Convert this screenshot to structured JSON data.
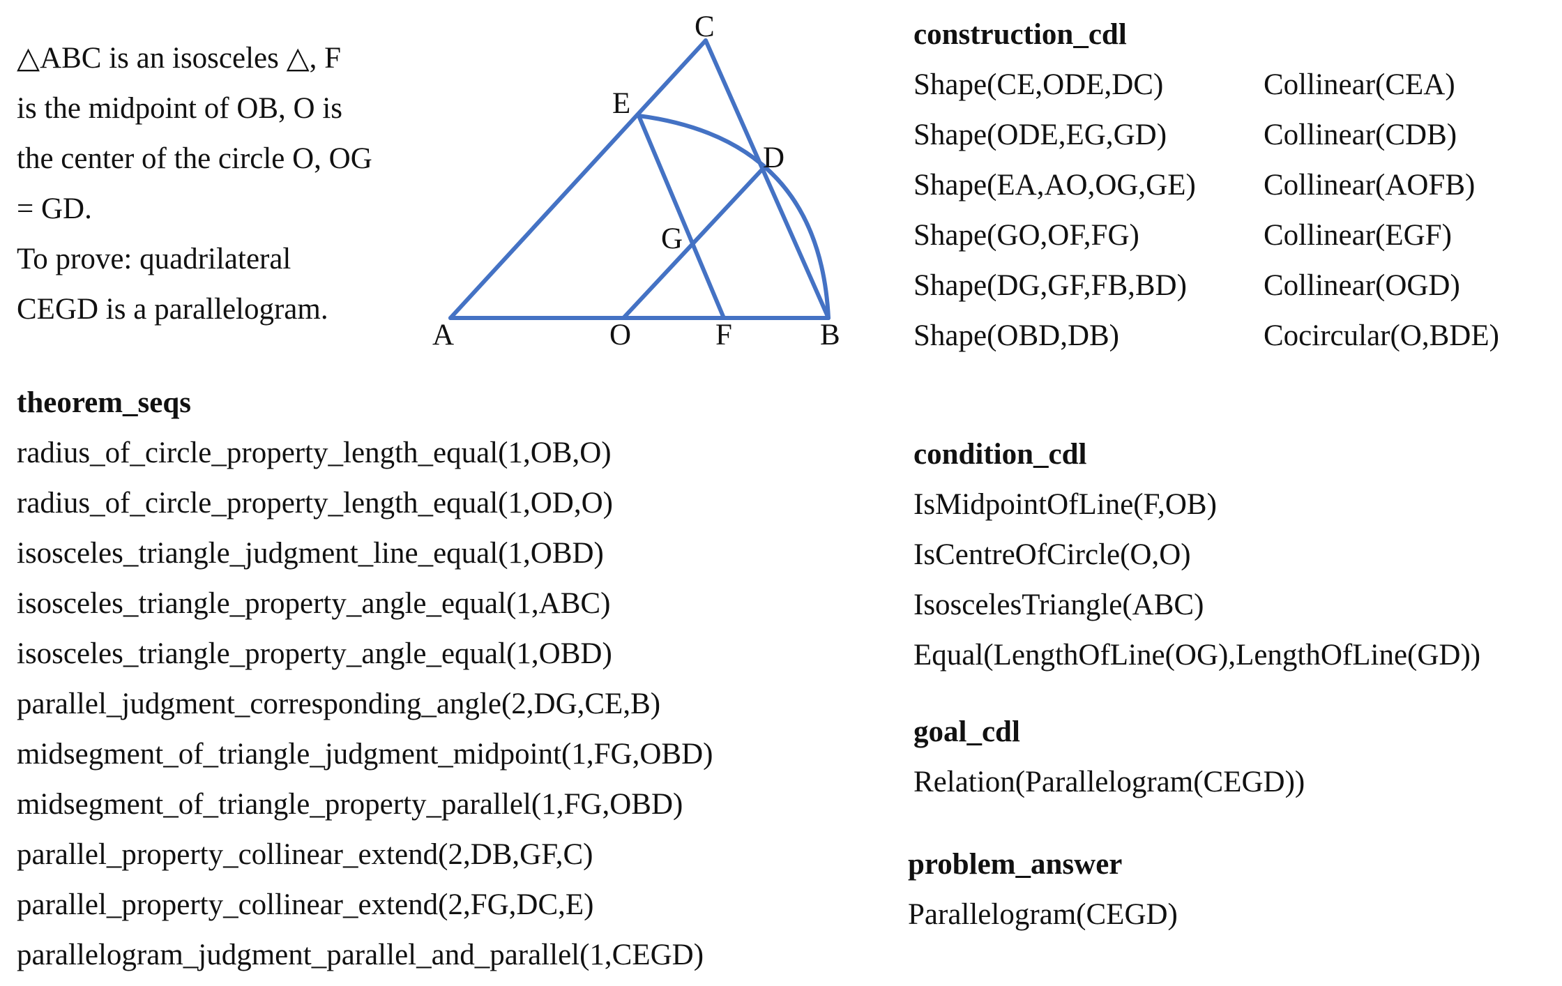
{
  "problem": {
    "lines": [
      "△ABC is an isosceles △, F",
      "is the midpoint of OB, O is",
      "the center of the circle O, OG",
      "= GD.",
      "To prove: quadrilateral",
      "CEGD is a parallelogram."
    ]
  },
  "diagram": {
    "points": [
      "C",
      "E",
      "D",
      "G",
      "A",
      "O",
      "F",
      "B"
    ],
    "line_color": "#4472C4"
  },
  "construction_cdl": {
    "heading": "construction_cdl",
    "shapes": [
      "Shape(CE,ODE,DC)",
      "Shape(ODE,EG,GD)",
      "Shape(EA,AO,OG,GE)",
      "Shape(GO,OF,FG)",
      "Shape(DG,GF,FB,BD)",
      "Shape(OBD,DB)"
    ],
    "relations": [
      "Collinear(CEA)",
      "Collinear(CDB)",
      "Collinear(AOFB)",
      "Collinear(EGF)",
      "Collinear(OGD)",
      "Cocircular(O,BDE)"
    ]
  },
  "theorem_seqs": {
    "heading": "theorem_seqs",
    "items": [
      "radius_of_circle_property_length_equal(1,OB,O)",
      "radius_of_circle_property_length_equal(1,OD,O)",
      "isosceles_triangle_judgment_line_equal(1,OBD)",
      "isosceles_triangle_property_angle_equal(1,ABC)",
      "isosceles_triangle_property_angle_equal(1,OBD)",
      "parallel_judgment_corresponding_angle(2,DG,CE,B)",
      "midsegment_of_triangle_judgment_midpoint(1,FG,OBD)",
      "midsegment_of_triangle_property_parallel(1,FG,OBD)",
      "parallel_property_collinear_extend(2,DB,GF,C)",
      "parallel_property_collinear_extend(2,FG,DC,E)",
      "parallelogram_judgment_parallel_and_parallel(1,CEGD)"
    ]
  },
  "condition_cdl": {
    "heading": "condition_cdl",
    "items": [
      "IsMidpointOfLine(F,OB)",
      "IsCentreOfCircle(O,O)",
      "IsoscelesTriangle(ABC)",
      "Equal(LengthOfLine(OG),LengthOfLine(GD))"
    ]
  },
  "goal_cdl": {
    "heading": "goal_cdl",
    "items": [
      "Relation(Parallelogram(CEGD))"
    ]
  },
  "problem_answer": {
    "heading": "problem_answer",
    "items": [
      "Parallelogram(CEGD)"
    ]
  }
}
